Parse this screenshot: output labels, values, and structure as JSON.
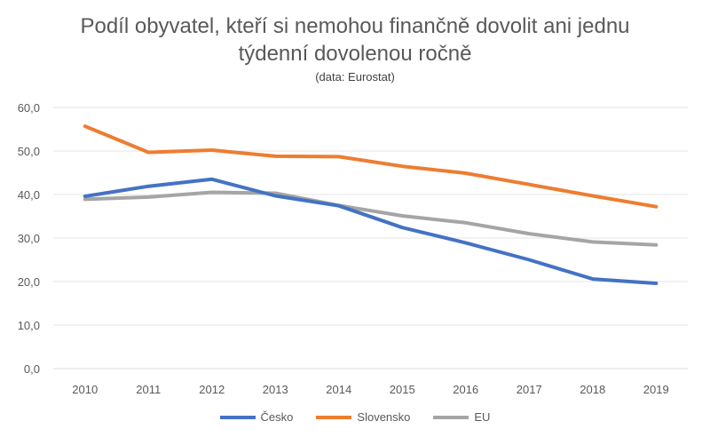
{
  "chart_data": {
    "type": "line",
    "title_line1": "Podíl obyvatel, kteří si nemohou finančně dovolit ani jednu",
    "title_line2": "týdenní dovolenou ročně",
    "subtitle": "(data: Eurostat)",
    "xlabel": "",
    "ylabel": "",
    "categories": [
      "2010",
      "2011",
      "2012",
      "2013",
      "2014",
      "2015",
      "2016",
      "2017",
      "2018",
      "2019"
    ],
    "ylim": [
      0,
      60
    ],
    "yticks": [
      "0,0",
      "10,0",
      "20,0",
      "30,0",
      "40,0",
      "50,0",
      "60,0"
    ],
    "grid": true,
    "legend_position": "bottom",
    "series": [
      {
        "name": "Česko",
        "color": "#4472C4",
        "values": [
          39.6,
          41.9,
          43.5,
          39.7,
          37.4,
          32.4,
          28.9,
          25.0,
          20.6,
          19.6
        ]
      },
      {
        "name": "Slovensko",
        "color": "#ED7D31",
        "values": [
          55.7,
          49.7,
          50.2,
          48.8,
          48.7,
          46.5,
          44.9,
          42.3,
          39.7,
          37.2
        ]
      },
      {
        "name": "EU",
        "color": "#A5A5A5",
        "values": [
          38.9,
          39.4,
          40.5,
          40.3,
          37.5,
          35.1,
          33.5,
          31.0,
          29.1,
          28.4
        ]
      }
    ]
  }
}
